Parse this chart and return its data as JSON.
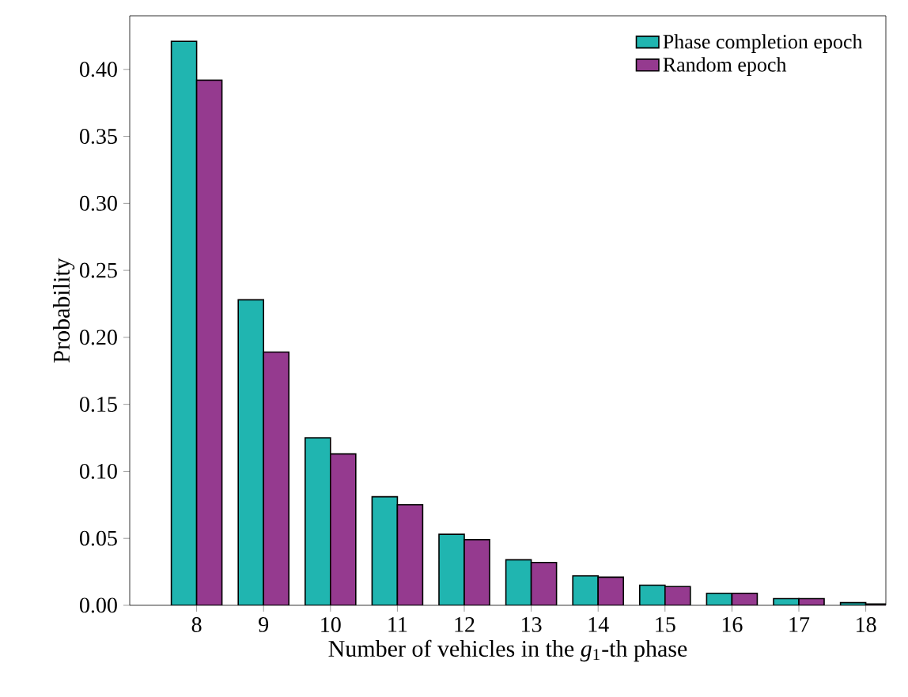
{
  "chart_data": {
    "type": "bar",
    "xlabel": "Number of vehicles in the *g*$_{1}$-th phase",
    "ylabel": "Probability",
    "categories": [
      "8",
      "9",
      "10",
      "11",
      "12",
      "13",
      "14",
      "15",
      "16",
      "17",
      "18"
    ],
    "series": [
      {
        "name": "Phase completion epoch",
        "color": "#20b5b0",
        "values": [
          0.421,
          0.228,
          0.125,
          0.081,
          0.053,
          0.034,
          0.022,
          0.015,
          0.009,
          0.005,
          0.002
        ]
      },
      {
        "name": "Random epoch",
        "color": "#953a8f",
        "values": [
          0.392,
          0.189,
          0.113,
          0.075,
          0.049,
          0.032,
          0.021,
          0.014,
          0.009,
          0.005,
          0.001
        ]
      }
    ],
    "ylim": [
      0,
      0.44
    ],
    "yticks": [
      {
        "value": 0,
        "label": "0.00"
      },
      {
        "value": 0.05,
        "label": "0.05"
      },
      {
        "value": 0.1,
        "label": "0.10"
      },
      {
        "value": 0.15,
        "label": "0.15"
      },
      {
        "value": 0.2,
        "label": "0.20"
      },
      {
        "value": 0.25,
        "label": "0.25"
      },
      {
        "value": 0.3,
        "label": "0.30"
      },
      {
        "value": 0.35,
        "label": "0.35"
      },
      {
        "value": 0.4,
        "label": "0.40"
      }
    ],
    "legend": "top right",
    "grid": false
  }
}
